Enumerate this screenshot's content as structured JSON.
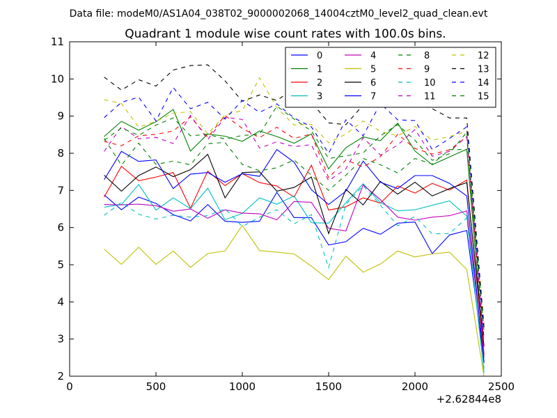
{
  "chart_data": {
    "type": "line",
    "suptitle": "Data file: modeM0/AS1A04_038T02_9000002068_14004cztM0_level2_quad_clean.evt",
    "title": "Quadrant 1 module wise count rates with 100.0s bins.",
    "xlabel": "",
    "ylabel": "",
    "x_offset_label": "+2.62844e8",
    "xlim": [
      0,
      2500
    ],
    "ylim": [
      2,
      11
    ],
    "xticks": [
      0,
      500,
      1000,
      1500,
      2000,
      2500
    ],
    "yticks": [
      2,
      3,
      4,
      5,
      6,
      7,
      8,
      9,
      10,
      11
    ],
    "legend": {
      "placement": "top-right",
      "columns": 4
    },
    "x": [
      200,
      300,
      400,
      500,
      600,
      700,
      800,
      900,
      1000,
      1100,
      1200,
      1300,
      1400,
      1500,
      1600,
      1700,
      1800,
      1900,
      2000,
      2100,
      2200,
      2300,
      2400
    ],
    "series": [
      {
        "name": "0",
        "color": "#0000ff",
        "dash": "solid",
        "values": [
          6.88,
          6.48,
          6.82,
          6.65,
          6.35,
          6.18,
          6.62,
          6.17,
          6.14,
          6.17,
          6.95,
          6.27,
          6.27,
          5.53,
          5.62,
          5.98,
          5.82,
          6.12,
          6.15,
          5.3,
          5.8,
          5.92,
          2.4
        ]
      },
      {
        "name": "1",
        "color": "#008000",
        "dash": "solid",
        "values": [
          8.45,
          8.86,
          8.62,
          8.85,
          9.18,
          8.06,
          8.52,
          8.46,
          8.32,
          8.6,
          8.45,
          8.27,
          8.52,
          7.58,
          8.15,
          8.44,
          8.34,
          8.81,
          8.06,
          7.69,
          7.9,
          8.11,
          2.55
        ]
      },
      {
        "name": "2",
        "color": "#ff0000",
        "dash": "solid",
        "values": [
          6.82,
          7.65,
          7.26,
          7.36,
          7.48,
          6.52,
          7.52,
          7.13,
          7.45,
          7.21,
          7.12,
          6.82,
          7.68,
          6.47,
          6.56,
          6.8,
          6.66,
          7.12,
          6.93,
          7.19,
          7.01,
          7.28,
          2.6
        ]
      },
      {
        "name": "3",
        "color": "#00bfbf",
        "dash": "solid",
        "values": [
          6.55,
          6.62,
          7.16,
          6.47,
          6.8,
          6.51,
          7.06,
          6.21,
          6.38,
          6.8,
          6.63,
          6.85,
          6.13,
          6.12,
          6.67,
          7.18,
          6.67,
          6.45,
          6.48,
          6.6,
          6.72,
          6.31,
          2.1
        ]
      },
      {
        "name": "4",
        "color": "#bf00bf",
        "dash": "solid",
        "values": [
          6.62,
          6.61,
          6.63,
          6.59,
          6.44,
          6.5,
          6.25,
          6.48,
          6.39,
          6.37,
          6.21,
          6.7,
          6.68,
          5.98,
          5.91,
          7.15,
          6.75,
          6.28,
          6.2,
          6.28,
          6.32,
          6.45,
          2.5
        ]
      },
      {
        "name": "5",
        "color": "#bfbf00",
        "dash": "solid",
        "values": [
          5.42,
          5.01,
          5.47,
          5.01,
          5.37,
          4.93,
          5.3,
          5.37,
          6.06,
          5.38,
          5.34,
          5.29,
          4.96,
          4.6,
          5.23,
          4.8,
          5.02,
          5.37,
          5.21,
          5.29,
          5.34,
          4.87,
          2.0
        ]
      },
      {
        "name": "6",
        "color": "#000000",
        "dash": "solid",
        "values": [
          7.41,
          6.98,
          7.4,
          7.63,
          7.37,
          7.56,
          7.97,
          6.8,
          7.48,
          7.5,
          6.98,
          7.08,
          7.36,
          5.84,
          7.03,
          6.61,
          7.24,
          6.9,
          7.22,
          6.85,
          7.05,
          7.21,
          2.8
        ]
      },
      {
        "name": "7",
        "color": "#0000ff",
        "dash": "solid",
        "values": [
          7.29,
          8.05,
          7.78,
          7.82,
          7.05,
          7.44,
          7.48,
          7.22,
          7.45,
          7.38,
          8.1,
          7.76,
          7.02,
          6.62,
          6.98,
          7.79,
          7.22,
          7.05,
          7.4,
          7.4,
          7.19,
          6.85,
          2.35
        ]
      },
      {
        "name": "8",
        "color": "#008000",
        "dash": "dashed",
        "values": [
          8.4,
          7.68,
          8.27,
          7.7,
          7.79,
          7.69,
          8.26,
          8.29,
          7.7,
          7.53,
          7.61,
          7.82,
          7.41,
          7.0,
          7.41,
          7.86,
          7.69,
          7.47,
          7.86,
          7.71,
          8.1,
          8.1,
          3.3
        ]
      },
      {
        "name": "9",
        "color": "#ff0000",
        "dash": "dashed",
        "values": [
          8.32,
          8.2,
          8.47,
          8.51,
          8.6,
          8.98,
          8.43,
          9.02,
          8.67,
          8.42,
          8.7,
          8.4,
          8.52,
          7.34,
          7.82,
          7.63,
          7.91,
          8.51,
          8.13,
          7.98,
          8.09,
          8.44,
          2.8
        ]
      },
      {
        "name": "10",
        "color": "#00bfbf",
        "dash": "dashed",
        "values": [
          6.33,
          6.68,
          6.36,
          6.23,
          6.33,
          6.28,
          6.32,
          6.51,
          6.03,
          6.28,
          6.48,
          6.1,
          6.35,
          4.92,
          6.62,
          7.13,
          6.6,
          6.05,
          6.3,
          5.83,
          5.84,
          6.26,
          2.2
        ]
      },
      {
        "name": "11",
        "color": "#bf00bf",
        "dash": "dashed",
        "values": [
          8.05,
          8.72,
          8.39,
          8.43,
          8.26,
          9.02,
          8.37,
          8.97,
          8.91,
          8.14,
          8.31,
          8.18,
          8.23,
          7.26,
          7.58,
          8.42,
          7.95,
          8.22,
          8.64,
          7.92,
          8.05,
          8.45,
          2.85
        ]
      },
      {
        "name": "12",
        "color": "#bfbf00",
        "dash": "dashed",
        "values": [
          9.44,
          9.34,
          8.7,
          8.86,
          9.08,
          9.12,
          8.52,
          9.03,
          9.15,
          10.03,
          9.23,
          8.76,
          8.78,
          8.28,
          8.52,
          8.87,
          8.59,
          8.47,
          8.72,
          8.35,
          8.45,
          8.59,
          3.4
        ]
      },
      {
        "name": "13",
        "color": "#000000",
        "dash": "dashed",
        "values": [
          10.05,
          9.7,
          9.98,
          9.81,
          10.24,
          10.36,
          10.38,
          9.95,
          9.4,
          9.57,
          9.42,
          9.75,
          9.38,
          8.82,
          8.77,
          9.3,
          9.9,
          10.1,
          9.34,
          9.2,
          8.95,
          8.95,
          3.3
        ]
      },
      {
        "name": "14",
        "color": "#0000ff",
        "dash": "dashed",
        "values": [
          8.96,
          9.37,
          9.51,
          8.87,
          9.77,
          9.2,
          9.37,
          8.92,
          9.42,
          9.1,
          9.33,
          8.95,
          8.71,
          8.0,
          8.9,
          8.47,
          9.34,
          8.9,
          8.88,
          8.1,
          8.4,
          8.71,
          3.0
        ]
      },
      {
        "name": "15",
        "color": "#008000",
        "dash": "dashed",
        "values": [
          8.35,
          8.68,
          8.48,
          8.76,
          8.95,
          8.47,
          8.51,
          8.38,
          8.48,
          8.51,
          9.27,
          8.92,
          8.6,
          7.86,
          7.93,
          8.01,
          8.47,
          8.77,
          8.35,
          7.81,
          7.99,
          8.57,
          3.2
        ]
      }
    ]
  }
}
